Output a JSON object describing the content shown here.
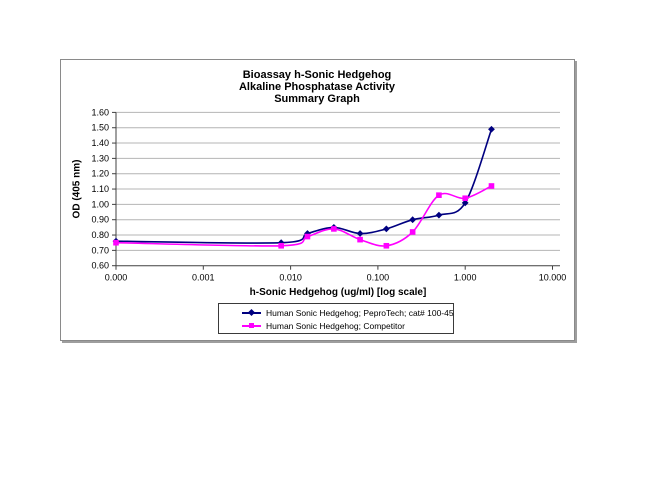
{
  "chart_data": {
    "type": "line",
    "x_scale": "log",
    "title": "Bioassay h-Sonic Hedgehog Alkaline Phosphatase Activity Summary Graph",
    "title_lines": [
      "Bioassay h-Sonic Hedgehog",
      "Alkaline Phosphatase Activity",
      "Summary Graph"
    ],
    "xlabel": "h-Sonic Hedgehog (ug/ml) [log scale]",
    "ylabel": "OD (405 nm)",
    "xlim": [
      0.0001,
      10
    ],
    "ylim": [
      0.6,
      1.6
    ],
    "x_tick_values": [
      0.0001,
      0.001,
      0.01,
      0.1,
      1,
      10
    ],
    "x_tick_labels": [
      "0.000",
      "0.001",
      "0.010",
      "0.100",
      "1.000",
      "10.000"
    ],
    "y_tick_values": [
      0.6,
      0.7,
      0.8,
      0.9,
      1.0,
      1.1,
      1.2,
      1.3,
      1.4,
      1.5,
      1.6
    ],
    "y_tick_labels": [
      "0.60",
      "0.70",
      "0.80",
      "0.90",
      "1.00",
      "1.10",
      "1.20",
      "1.30",
      "1.40",
      "1.50",
      "1.60"
    ],
    "grid": "horizontal",
    "legend_position": "bottom",
    "line_style": "smoothed",
    "series": [
      {
        "name": "Human Sonic Hedgehog; PeproTech; cat# 100-45",
        "color": "#000080",
        "marker": "diamond",
        "x": [
          0.0001,
          0.0078,
          0.0156,
          0.0313,
          0.0625,
          0.125,
          0.25,
          0.5,
          1.0,
          2.0
        ],
        "y": [
          0.76,
          0.75,
          0.81,
          0.85,
          0.81,
          0.84,
          0.9,
          0.93,
          1.01,
          1.49
        ]
      },
      {
        "name": "Human Sonic Hedgehog; Competitor",
        "color": "#FF00FF",
        "marker": "square",
        "x": [
          0.0001,
          0.0078,
          0.0156,
          0.0313,
          0.0625,
          0.125,
          0.25,
          0.5,
          1.0,
          2.0
        ],
        "y": [
          0.75,
          0.73,
          0.79,
          0.84,
          0.77,
          0.73,
          0.82,
          1.06,
          1.04,
          1.12
        ]
      }
    ],
    "colors": {
      "gridline": "#b4b4b4",
      "axis": "#404040",
      "text": "#000000",
      "background": "#ffffff"
    }
  }
}
